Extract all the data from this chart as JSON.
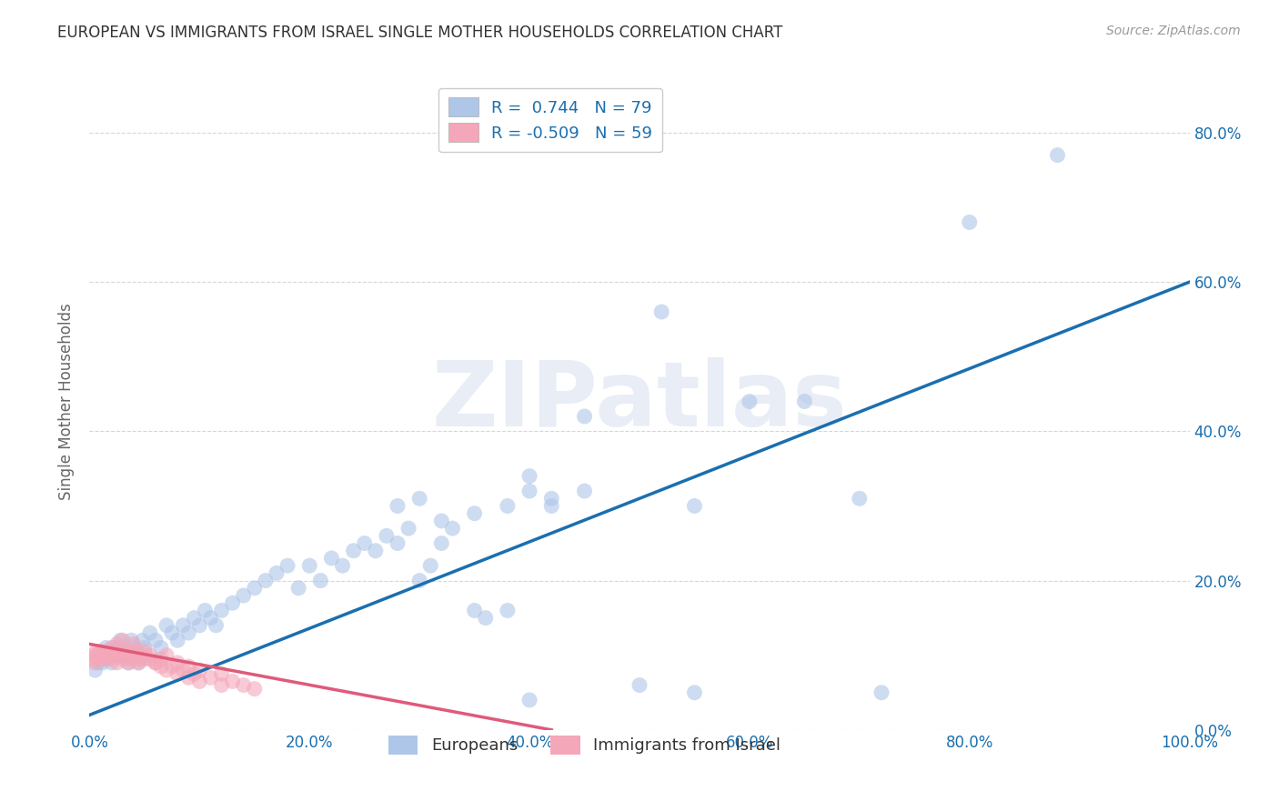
{
  "title": "EUROPEAN VS IMMIGRANTS FROM ISRAEL SINGLE MOTHER HOUSEHOLDS CORRELATION CHART",
  "source": "Source: ZipAtlas.com",
  "ylabel": "Single Mother Households",
  "xlim": [
    0,
    1.0
  ],
  "ylim": [
    0,
    0.88
  ],
  "blue_r": 0.744,
  "blue_n": 79,
  "pink_r": -0.509,
  "pink_n": 59,
  "blue_line_color": "#1a6faf",
  "pink_line_color": "#e05a7a",
  "blue_scatter_color": "#aec6e8",
  "pink_scatter_color": "#f4a7b9",
  "watermark_text": "ZIPatlas",
  "background_color": "#ffffff",
  "grid_color": "#cccccc",
  "title_color": "#333333",
  "axis_tick_color": "#1a6faf",
  "legend1_label1": "R =  0.744   N = 79",
  "legend1_label2": "R = -0.509   N = 59",
  "legend2_label1": "Europeans",
  "legend2_label2": "Immigrants from Israel",
  "blue_line_x0": 0.0,
  "blue_line_y0": 0.02,
  "blue_line_x1": 1.0,
  "blue_line_y1": 0.6,
  "pink_line_x0": 0.0,
  "pink_line_y0": 0.115,
  "pink_line_x1": 0.42,
  "pink_line_y1": 0.0,
  "blue_scatter_x": [
    0.005,
    0.008,
    0.01,
    0.012,
    0.015,
    0.018,
    0.02,
    0.022,
    0.025,
    0.028,
    0.03,
    0.032,
    0.035,
    0.038,
    0.04,
    0.042,
    0.045,
    0.048,
    0.05,
    0.055,
    0.06,
    0.065,
    0.07,
    0.075,
    0.08,
    0.085,
    0.09,
    0.095,
    0.1,
    0.105,
    0.11,
    0.115,
    0.12,
    0.13,
    0.14,
    0.15,
    0.16,
    0.17,
    0.18,
    0.19,
    0.2,
    0.21,
    0.22,
    0.23,
    0.24,
    0.25,
    0.26,
    0.27,
    0.28,
    0.29,
    0.3,
    0.31,
    0.32,
    0.33,
    0.35,
    0.36,
    0.38,
    0.4,
    0.42,
    0.45,
    0.28,
    0.3,
    0.32,
    0.35,
    0.38,
    0.4,
    0.42,
    0.45,
    0.52,
    0.6,
    0.55,
    0.65,
    0.7,
    0.8,
    0.88,
    0.55,
    0.72,
    0.4,
    0.5
  ],
  "blue_scatter_y": [
    0.08,
    0.09,
    0.1,
    0.09,
    0.11,
    0.1,
    0.09,
    0.11,
    0.1,
    0.12,
    0.11,
    0.1,
    0.09,
    0.12,
    0.11,
    0.1,
    0.09,
    0.12,
    0.11,
    0.13,
    0.12,
    0.11,
    0.14,
    0.13,
    0.12,
    0.14,
    0.13,
    0.15,
    0.14,
    0.16,
    0.15,
    0.14,
    0.16,
    0.17,
    0.18,
    0.19,
    0.2,
    0.21,
    0.22,
    0.19,
    0.22,
    0.2,
    0.23,
    0.22,
    0.24,
    0.25,
    0.24,
    0.26,
    0.25,
    0.27,
    0.2,
    0.22,
    0.25,
    0.27,
    0.16,
    0.15,
    0.16,
    0.32,
    0.3,
    0.32,
    0.3,
    0.31,
    0.28,
    0.29,
    0.3,
    0.34,
    0.31,
    0.42,
    0.56,
    0.44,
    0.3,
    0.44,
    0.31,
    0.68,
    0.77,
    0.05,
    0.05,
    0.04,
    0.06
  ],
  "pink_scatter_x": [
    0.002,
    0.004,
    0.005,
    0.006,
    0.007,
    0.008,
    0.009,
    0.01,
    0.012,
    0.014,
    0.015,
    0.016,
    0.018,
    0.02,
    0.022,
    0.024,
    0.025,
    0.027,
    0.03,
    0.032,
    0.034,
    0.036,
    0.038,
    0.04,
    0.042,
    0.044,
    0.046,
    0.048,
    0.05,
    0.055,
    0.06,
    0.065,
    0.07,
    0.075,
    0.08,
    0.085,
    0.09,
    0.095,
    0.1,
    0.11,
    0.12,
    0.13,
    0.14,
    0.15,
    0.02,
    0.025,
    0.03,
    0.035,
    0.04,
    0.045,
    0.05,
    0.055,
    0.06,
    0.065,
    0.07,
    0.08,
    0.09,
    0.1,
    0.12
  ],
  "pink_scatter_y": [
    0.095,
    0.1,
    0.09,
    0.105,
    0.1,
    0.095,
    0.1,
    0.105,
    0.095,
    0.1,
    0.105,
    0.095,
    0.1,
    0.095,
    0.1,
    0.105,
    0.09,
    0.1,
    0.095,
    0.1,
    0.105,
    0.09,
    0.095,
    0.1,
    0.105,
    0.09,
    0.095,
    0.1,
    0.095,
    0.1,
    0.09,
    0.095,
    0.1,
    0.085,
    0.09,
    0.08,
    0.085,
    0.075,
    0.08,
    0.07,
    0.075,
    0.065,
    0.06,
    0.055,
    0.11,
    0.115,
    0.12,
    0.1,
    0.115,
    0.1,
    0.105,
    0.095,
    0.09,
    0.085,
    0.08,
    0.075,
    0.07,
    0.065,
    0.06
  ]
}
